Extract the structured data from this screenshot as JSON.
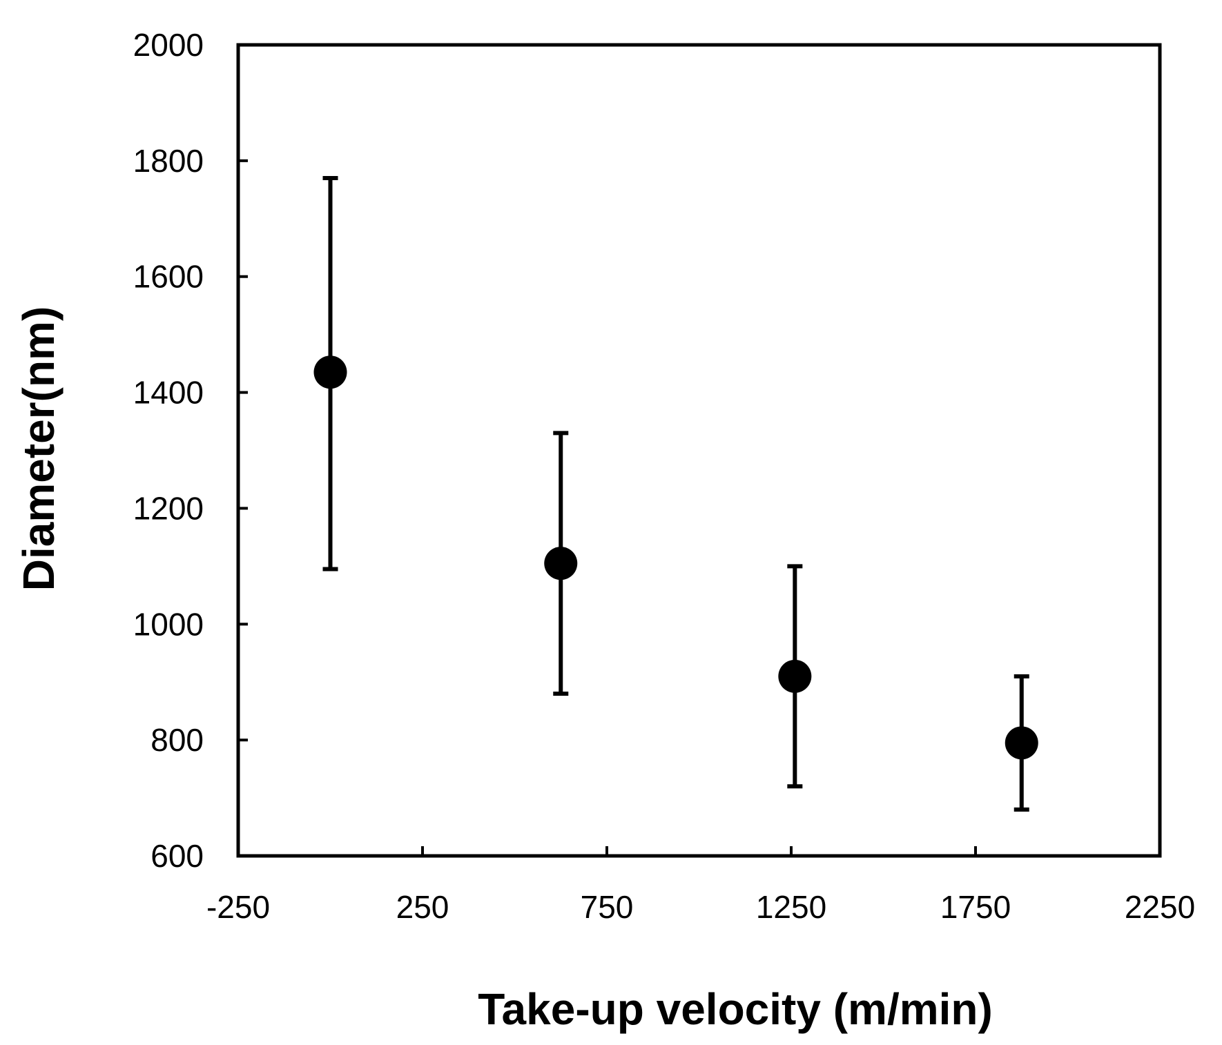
{
  "chart_data": {
    "type": "scatter",
    "title": "",
    "xlabel": "Take-up velocity (m/min)",
    "ylabel": "Diameter(nm)",
    "xlim": [
      -250,
      2250
    ],
    "ylim": [
      600,
      2000
    ],
    "xticks": [
      -250,
      250,
      750,
      1250,
      1750,
      2250
    ],
    "yticks": [
      600,
      800,
      1000,
      1200,
      1400,
      1600,
      1800,
      2000
    ],
    "grid": false,
    "series": [
      {
        "name": "Diameter",
        "color": "#000000",
        "points": [
          {
            "x": 0,
            "y": 1435,
            "err_low": 1095,
            "err_high": 1770
          },
          {
            "x": 625,
            "y": 1105,
            "err_low": 880,
            "err_high": 1330
          },
          {
            "x": 1260,
            "y": 910,
            "err_low": 720,
            "err_high": 1100
          },
          {
            "x": 1875,
            "y": 795,
            "err_low": 680,
            "err_high": 910
          }
        ]
      }
    ]
  }
}
